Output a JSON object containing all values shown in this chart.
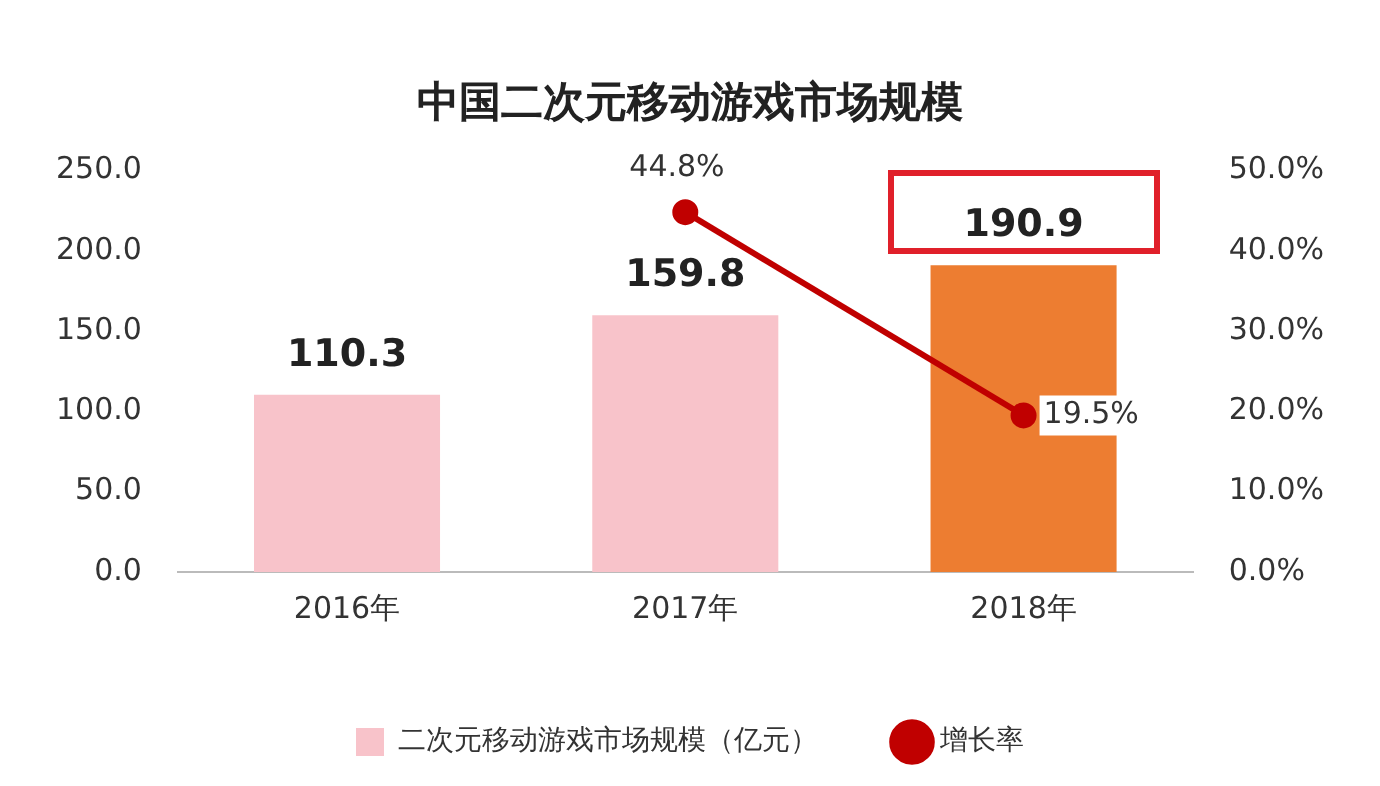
{
  "chart_data": {
    "type": "bar",
    "title": "中国二次元移动游戏市场规模",
    "categories": [
      "2016年",
      "2017年",
      "2018年"
    ],
    "series": [
      {
        "name": "二次元移动游戏市场规模（亿元）",
        "colors": [
          "#f8c3ca",
          "#f8c3ca",
          "#ed7d31"
        ],
        "values": [
          110.3,
          159.8,
          190.9
        ]
      },
      {
        "name": "增长率",
        "type": "line",
        "axis": "y2",
        "color": "#c00000",
        "values": [
          null,
          44.8,
          19.5
        ],
        "value_labels": [
          null,
          "44.8%",
          "19.5%"
        ]
      }
    ],
    "data_labels": true,
    "marker": "circle",
    "legend": "bottom",
    "grid": false,
    "ylim": [
      0,
      250
    ],
    "yticks": [
      {
        "value": 0,
        "label": "0.0"
      },
      {
        "value": 50,
        "label": "50.0"
      },
      {
        "value": 100,
        "label": "100.0"
      },
      {
        "value": 150,
        "label": "150.0"
      },
      {
        "value": 200,
        "label": "200.0"
      },
      {
        "value": 250,
        "label": "250.0"
      }
    ],
    "y2lim": [
      0,
      50
    ],
    "y2ticks": [
      {
        "value": 0,
        "label": "0.0%"
      },
      {
        "value": 10,
        "label": "10.0%"
      },
      {
        "value": 20,
        "label": "20.0%"
      },
      {
        "value": 30,
        "label": "30.0%"
      },
      {
        "value": 40,
        "label": "40.0%"
      },
      {
        "value": 50,
        "label": "50.0%"
      }
    ]
  }
}
